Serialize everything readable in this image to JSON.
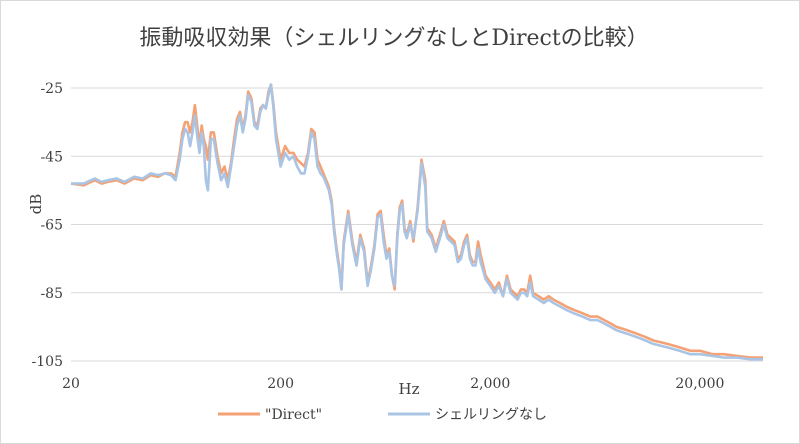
{
  "chart_data": {
    "type": "line",
    "title": "振動吸収効果（シェルリングなしとDirectの比較）",
    "xlabel": "Hz",
    "ylabel": "dB",
    "x_scale": "log",
    "xlim": [
      20,
      40000
    ],
    "ylim": [
      -105,
      -20
    ],
    "x_ticks": [
      {
        "value": 20,
        "label": "20"
      },
      {
        "value": 200,
        "label": "200"
      },
      {
        "value": 2000,
        "label": "2,000"
      },
      {
        "value": 20000,
        "label": "20,000"
      }
    ],
    "y_ticks": [
      {
        "value": -25,
        "label": "-25"
      },
      {
        "value": -45,
        "label": "-45"
      },
      {
        "value": -65,
        "label": "-65"
      },
      {
        "value": -85,
        "label": "-85"
      },
      {
        "value": -105,
        "label": "-105"
      }
    ],
    "grid": "horizontal",
    "legend_position": "bottom",
    "series": [
      {
        "name": "\"Direct\"",
        "color": "#f4a275",
        "x": [
          20,
          23,
          26,
          28,
          30,
          33,
          36,
          40,
          44,
          48,
          52,
          56,
          60,
          63,
          66,
          68,
          70,
          72,
          74,
          76,
          78,
          80,
          82,
          84,
          86,
          88,
          90,
          93,
          96,
          100,
          104,
          108,
          112,
          116,
          120,
          124,
          128,
          132,
          136,
          140,
          145,
          150,
          155,
          160,
          165,
          170,
          175,
          180,
          185,
          190,
          200,
          210,
          220,
          230,
          240,
          250,
          260,
          270,
          280,
          290,
          300,
          310,
          320,
          330,
          340,
          350,
          360,
          370,
          380,
          390,
          400,
          420,
          440,
          460,
          480,
          500,
          520,
          540,
          560,
          580,
          600,
          620,
          640,
          660,
          680,
          700,
          720,
          740,
          760,
          780,
          800,
          830,
          860,
          900,
          940,
          980,
          1000,
          1050,
          1100,
          1150,
          1200,
          1250,
          1300,
          1350,
          1400,
          1450,
          1500,
          1550,
          1600,
          1650,
          1700,
          1750,
          1800,
          1900,
          2000,
          2100,
          2200,
          2300,
          2400,
          2500,
          2600,
          2700,
          2800,
          2900,
          3000,
          3100,
          3200,
          3400,
          3600,
          3800,
          4000,
          4300,
          4600,
          5000,
          5500,
          6000,
          6500,
          7000,
          7500,
          8000,
          9000,
          10000,
          11000,
          12000,
          14000,
          16000,
          18000,
          20000,
          23000,
          26000,
          30000,
          35000,
          40000
        ],
        "y": [
          -53,
          -53.5,
          -52,
          -53,
          -52.5,
          -52,
          -53,
          -51.5,
          -52,
          -50.5,
          -51,
          -50,
          -50,
          -51,
          -44,
          -38,
          -35,
          -35,
          -38,
          -35,
          -30,
          -36,
          -42,
          -36,
          -40,
          -42,
          -46,
          -38,
          -38,
          -45,
          -50,
          -48,
          -52,
          -47,
          -40,
          -34,
          -32,
          -37,
          -33,
          -26,
          -28,
          -35,
          -36,
          -31,
          -30,
          -31,
          -26,
          -24,
          -30,
          -38,
          -46,
          -42,
          -44,
          -44,
          -46,
          -47,
          -48,
          -44,
          -37,
          -38,
          -46,
          -48,
          -50,
          -52,
          -54,
          -58,
          -66,
          -72,
          -77,
          -84,
          -70,
          -61,
          -70,
          -76,
          -68,
          -72,
          -82,
          -77,
          -71,
          -62,
          -61,
          -68,
          -74,
          -72,
          -80,
          -84,
          -68,
          -60,
          -58,
          -66,
          -68,
          -64,
          -70,
          -60,
          -46,
          -52,
          -66,
          -68,
          -72,
          -68,
          -64,
          -68,
          -69,
          -70,
          -75,
          -74,
          -70,
          -68,
          -74,
          -76,
          -76,
          -70,
          -74,
          -80,
          -82,
          -84,
          -82,
          -86,
          -80,
          -84,
          -85,
          -86,
          -84,
          -84,
          -85,
          -80,
          -85,
          -86,
          -87,
          -86,
          -87,
          -88,
          -89,
          -90,
          -91,
          -92,
          -92,
          -93,
          -94,
          -95,
          -96,
          -97,
          -98,
          -99,
          -100,
          -101,
          -102,
          -102,
          -103,
          -103,
          -103.5,
          -104,
          -104
        ]
      },
      {
        "name": "シェルリングなし",
        "color": "#a9c4e4",
        "x": [
          20,
          23,
          26,
          28,
          30,
          33,
          36,
          40,
          44,
          48,
          52,
          56,
          60,
          63,
          66,
          68,
          70,
          72,
          74,
          76,
          78,
          80,
          82,
          84,
          86,
          88,
          90,
          93,
          96,
          100,
          104,
          108,
          112,
          116,
          120,
          124,
          128,
          132,
          136,
          140,
          145,
          150,
          155,
          160,
          165,
          170,
          175,
          180,
          185,
          190,
          200,
          210,
          220,
          230,
          240,
          250,
          260,
          270,
          280,
          290,
          300,
          310,
          320,
          330,
          340,
          350,
          360,
          370,
          380,
          390,
          400,
          420,
          440,
          460,
          480,
          500,
          520,
          540,
          560,
          580,
          600,
          620,
          640,
          660,
          680,
          700,
          720,
          740,
          760,
          780,
          800,
          830,
          860,
          900,
          940,
          980,
          1000,
          1050,
          1100,
          1150,
          1200,
          1250,
          1300,
          1350,
          1400,
          1450,
          1500,
          1550,
          1600,
          1650,
          1700,
          1750,
          1800,
          1900,
          2000,
          2100,
          2200,
          2300,
          2400,
          2500,
          2600,
          2700,
          2800,
          2900,
          3000,
          3100,
          3200,
          3400,
          3600,
          3800,
          4000,
          4300,
          4600,
          5000,
          5500,
          6000,
          6500,
          7000,
          7500,
          8000,
          9000,
          10000,
          11000,
          12000,
          14000,
          16000,
          18000,
          20000,
          23000,
          26000,
          30000,
          35000,
          40000
        ],
        "y": [
          -53,
          -53,
          -51.5,
          -52.5,
          -52,
          -51.5,
          -52.5,
          -51,
          -51.5,
          -50,
          -50.5,
          -50,
          -50.5,
          -52,
          -46,
          -40,
          -37,
          -38,
          -42,
          -38,
          -33,
          -39,
          -44,
          -38,
          -42,
          -52,
          -55,
          -40,
          -40,
          -47,
          -52,
          -50,
          -54,
          -48,
          -42,
          -36,
          -33,
          -38,
          -34,
          -27,
          -29,
          -36,
          -37,
          -32,
          -30,
          -31,
          -27,
          -24,
          -31,
          -40,
          -48,
          -44,
          -46,
          -45,
          -48,
          -50,
          -50,
          -45,
          -38,
          -40,
          -48,
          -50,
          -51,
          -53,
          -55,
          -59,
          -67,
          -73,
          -78,
          -84,
          -71,
          -62,
          -71,
          -77,
          -69,
          -73,
          -83,
          -78,
          -72,
          -63,
          -62,
          -70,
          -75,
          -73,
          -80,
          -83,
          -69,
          -61,
          -59,
          -67,
          -69,
          -65,
          -69,
          -61,
          -47,
          -54,
          -67,
          -69,
          -73,
          -69,
          -65,
          -69,
          -70,
          -71,
          -76,
          -75,
          -71,
          -69,
          -75,
          -77,
          -77,
          -72,
          -76,
          -81,
          -83,
          -85,
          -83,
          -86,
          -81,
          -85,
          -86,
          -87,
          -85,
          -85,
          -86,
          -82,
          -86,
          -87,
          -88,
          -87,
          -88,
          -89,
          -90,
          -91,
          -92,
          -93,
          -93,
          -94,
          -95,
          -96,
          -97,
          -98,
          -99,
          -100,
          -101,
          -102,
          -103,
          -103,
          -103.5,
          -104,
          -104,
          -104.5,
          -104.5
        ]
      }
    ]
  }
}
